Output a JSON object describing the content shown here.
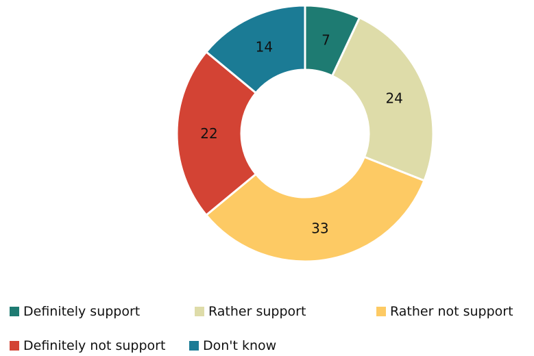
{
  "chart_data": {
    "type": "pie",
    "variant": "donut",
    "categories": [
      "Definitely support",
      "Rather support",
      "Rather not support",
      "Definitely not support",
      "Don't know"
    ],
    "values": [
      7,
      24,
      33,
      22,
      14
    ],
    "data_labels": [
      "7",
      "24",
      "33",
      "22",
      "14"
    ],
    "colors": [
      "#1e7b72",
      "#dedca9",
      "#fdca64",
      "#d34334",
      "#1b7b95"
    ],
    "legend_position": "bottom",
    "title": ""
  }
}
